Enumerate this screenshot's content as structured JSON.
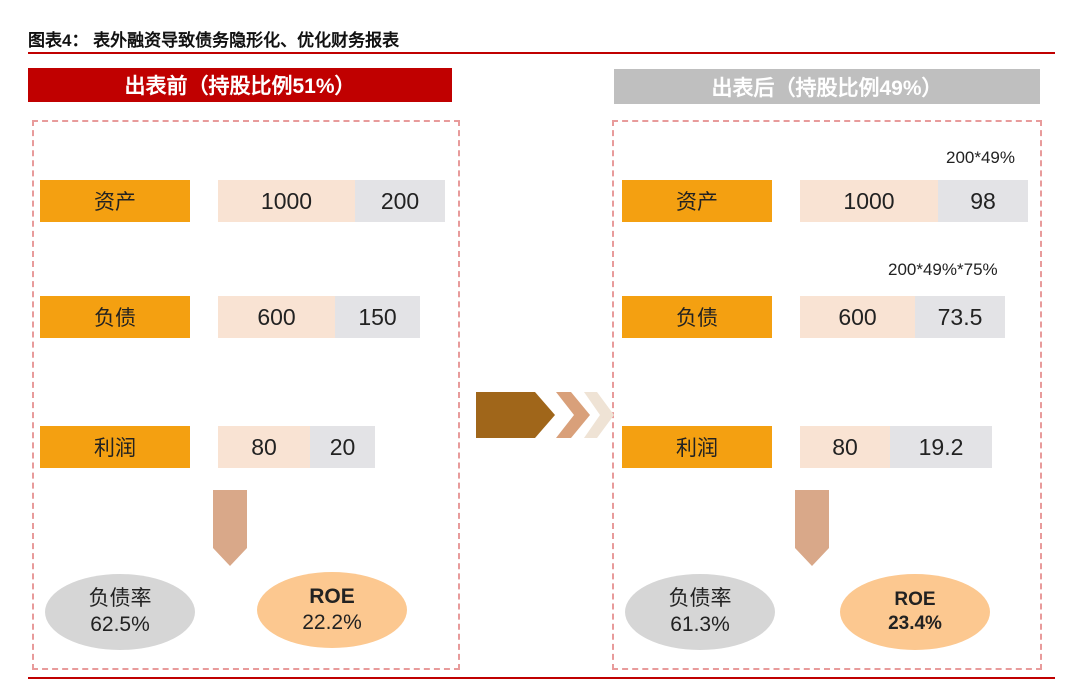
{
  "header": {
    "title": "图表4： 表外融资导致债务隐形化、优化财务报表"
  },
  "before": {
    "header": "出表前（持股比例51%）",
    "rows": [
      {
        "label": "资产",
        "a": "1000",
        "b": "200"
      },
      {
        "label": "负债",
        "a": "600",
        "b": "150"
      },
      {
        "label": "利润",
        "a": "80",
        "b": "20"
      }
    ],
    "ratio": {
      "label": "负债率",
      "value": "62.5%"
    },
    "roe": {
      "label": "ROE",
      "value": "22.2%"
    }
  },
  "after": {
    "header": "出表后（持股比例49%）",
    "notes": [
      "200*49%",
      "200*49%*75%"
    ],
    "rows": [
      {
        "label": "资产",
        "a": "1000",
        "b": "98"
      },
      {
        "label": "负债",
        "a": "600",
        "b": "73.5"
      },
      {
        "label": "利润",
        "a": "80",
        "b": "19.2"
      }
    ],
    "ratio": {
      "label": "负债率",
      "value": "61.3%"
    },
    "roe": {
      "label": "ROE",
      "value": "23.4%"
    }
  }
}
